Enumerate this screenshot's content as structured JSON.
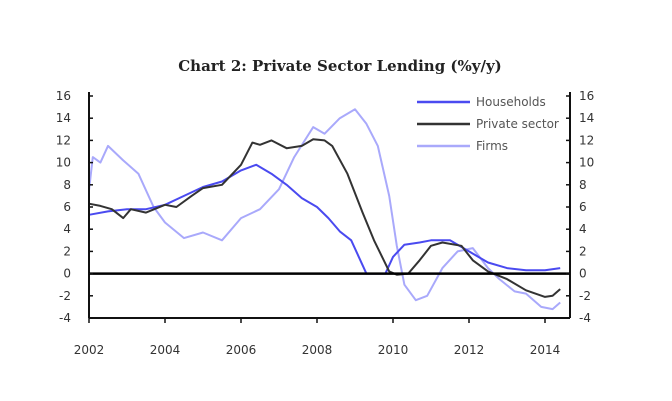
{
  "chart_data": {
    "type": "line",
    "title": "Chart 2: Private Sector Lending (%y/y)",
    "xlabel": "",
    "ylabel": "",
    "xlim": [
      2002,
      2014.65
    ],
    "ylim": [
      -4,
      16
    ],
    "x_ticks": [
      "2002",
      "2004",
      "2006",
      "2008",
      "2010",
      "2012",
      "2014"
    ],
    "y_ticks": [
      16,
      14,
      12,
      10,
      8,
      6,
      4,
      2,
      0,
      -2,
      -4
    ],
    "legend_position": "top-right",
    "grid": false,
    "series": [
      {
        "name": "Households",
        "color": "#4a4af0",
        "width": 2,
        "x": [
          2002,
          2002.5,
          2003,
          2003.5,
          2004,
          2004.5,
          2005,
          2005.5,
          2006,
          2006.4,
          2006.8,
          2007.2,
          2007.6,
          2008,
          2008.3,
          2008.6,
          2008.9,
          2009.1,
          2009.3,
          2009.6,
          2009.8,
          2010,
          2010.3,
          2010.7,
          2011,
          2011.5,
          2012,
          2012.5,
          2013,
          2013.5,
          2014,
          2014.4
        ],
        "y": [
          5.3,
          5.6,
          5.8,
          5.8,
          6.2,
          7.0,
          7.8,
          8.3,
          9.3,
          9.8,
          9.0,
          8.0,
          6.8,
          6.0,
          5.0,
          3.8,
          3.0,
          1.5,
          0.0,
          0.0,
          0.0,
          1.5,
          2.6,
          2.8,
          3.0,
          3.0,
          2.0,
          1.0,
          0.5,
          0.3,
          0.3,
          0.5
        ]
      },
      {
        "name": "Private sector",
        "color": "#333333",
        "width": 2,
        "x": [
          2002,
          2002.3,
          2002.6,
          2002.9,
          2003.1,
          2003.5,
          2004,
          2004.3,
          2004.7,
          2005,
          2005.5,
          2006,
          2006.3,
          2006.5,
          2006.8,
          2007.2,
          2007.6,
          2007.9,
          2008.2,
          2008.4,
          2008.8,
          2009.2,
          2009.5,
          2009.9,
          2010.1,
          2010.4,
          2010.7,
          2011,
          2011.3,
          2011.8,
          2012.1,
          2012.5,
          2013,
          2013.5,
          2014,
          2014.2,
          2014.4
        ],
        "y": [
          6.3,
          6.1,
          5.8,
          5.0,
          5.8,
          5.5,
          6.2,
          6.0,
          7.0,
          7.7,
          8.0,
          9.8,
          11.8,
          11.6,
          12.0,
          11.3,
          11.5,
          12.1,
          12.0,
          11.5,
          9.0,
          5.5,
          3.0,
          0.2,
          -0.1,
          0.0,
          1.2,
          2.5,
          2.8,
          2.5,
          1.2,
          0.2,
          -0.5,
          -1.5,
          -2.1,
          -2.0,
          -1.4
        ]
      },
      {
        "name": "Firms",
        "color": "#a9a9fb",
        "width": 2,
        "x": [
          2002,
          2002.1,
          2002.3,
          2002.5,
          2002.9,
          2003.3,
          2003.7,
          2004,
          2004.5,
          2005,
          2005.5,
          2006,
          2006.5,
          2007,
          2007.4,
          2007.9,
          2008.2,
          2008.6,
          2009,
          2009.3,
          2009.6,
          2009.9,
          2010.1,
          2010.3,
          2010.6,
          2010.9,
          2011.3,
          2011.7,
          2012.1,
          2012.5,
          2012.8,
          2013.2,
          2013.5,
          2013.9,
          2014.2,
          2014.4
        ],
        "y": [
          7.5,
          10.5,
          10.0,
          11.5,
          10.2,
          9.0,
          6.0,
          4.6,
          3.2,
          3.7,
          3.0,
          5.0,
          5.8,
          7.6,
          10.5,
          13.2,
          12.6,
          14.0,
          14.8,
          13.5,
          11.5,
          7.0,
          2.5,
          -1.0,
          -2.4,
          -2.0,
          0.5,
          2.0,
          2.3,
          0.5,
          -0.5,
          -1.6,
          -1.8,
          -3.0,
          -3.2,
          -2.6
        ]
      }
    ]
  }
}
